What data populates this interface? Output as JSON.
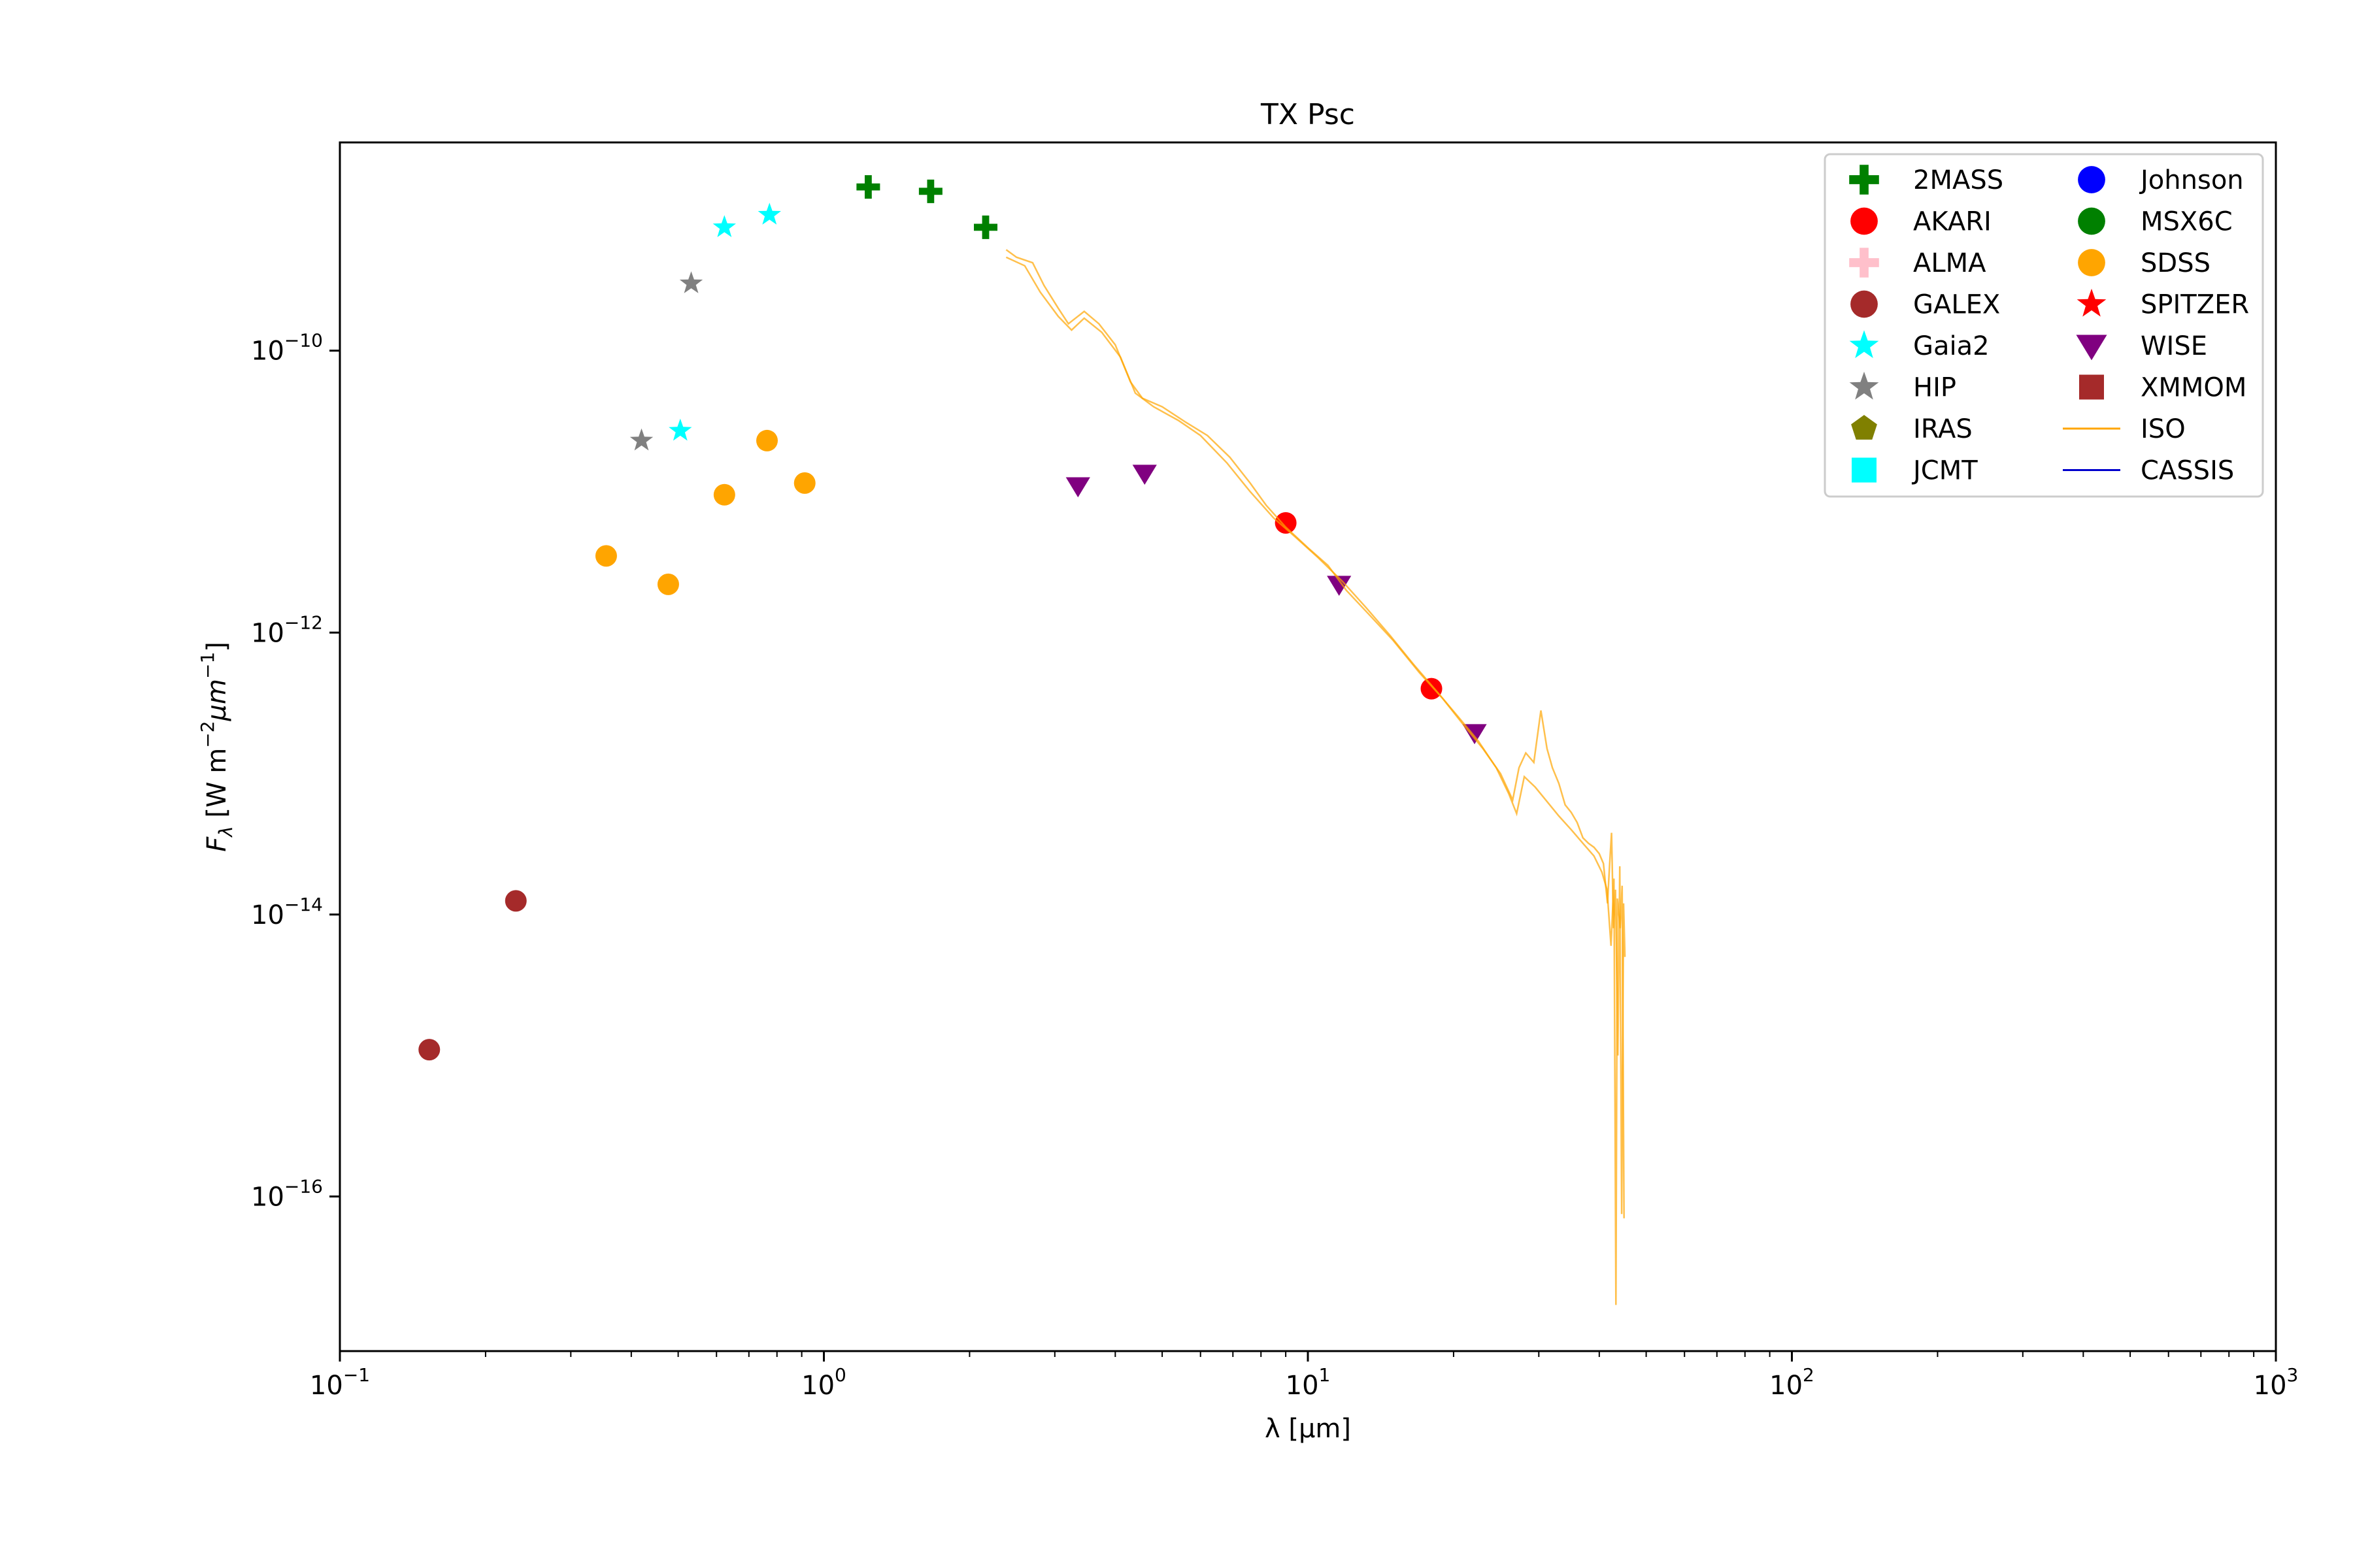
{
  "chart_data": {
    "type": "scatter",
    "title": "TX Psc",
    "xlabel": "λ [μm]",
    "ylabel": "F_λ [W m^-2 μm^-1]",
    "x_scale": "log",
    "y_scale": "log",
    "xlim": [
      0.1,
      1000
    ],
    "ylim": [
      8e-18,
      3e-09
    ],
    "grid": false,
    "legend_placement": "top-right",
    "x_ticks": [
      {
        "base": "10",
        "exp": "−1",
        "value": 0.1
      },
      {
        "base": "10",
        "exp": "0",
        "value": 1
      },
      {
        "base": "10",
        "exp": "1",
        "value": 10
      },
      {
        "base": "10",
        "exp": "2",
        "value": 100
      },
      {
        "base": "10",
        "exp": "3",
        "value": 1000
      }
    ],
    "y_ticks": [
      {
        "base": "10",
        "exp": "−10",
        "value": 1e-10
      },
      {
        "base": "10",
        "exp": "−12",
        "value": 1e-12
      },
      {
        "base": "10",
        "exp": "−14",
        "value": 1e-14
      },
      {
        "base": "10",
        "exp": "−16",
        "value": 1e-16
      }
    ],
    "series": [
      {
        "name": "2MASS",
        "marker": "plus",
        "color": "#008000",
        "points": [
          [
            1.235,
            1.45e-09
          ],
          [
            1.662,
            1.35e-09
          ],
          [
            2.159,
            7.5e-10
          ]
        ]
      },
      {
        "name": "AKARI",
        "marker": "circle",
        "color": "#ff0000",
        "points": [
          [
            9.0,
            6e-12
          ],
          [
            18.0,
            4e-13
          ]
        ]
      },
      {
        "name": "ALMA",
        "marker": "plus",
        "color": "#ffc0cb",
        "points": []
      },
      {
        "name": "GALEX",
        "marker": "circle",
        "color": "#a52a2a",
        "points": [
          [
            0.153,
            1.1e-15
          ],
          [
            0.231,
            1.25e-14
          ]
        ]
      },
      {
        "name": "Gaia2",
        "marker": "star",
        "color": "#00ffff",
        "points": [
          [
            0.505,
            2.7e-11
          ],
          [
            0.623,
            7.5e-10
          ],
          [
            0.772,
            9.2e-10
          ]
        ]
      },
      {
        "name": "HIP",
        "marker": "star",
        "color": "#808080",
        "points": [
          [
            0.42,
            2.3e-11
          ],
          [
            0.532,
            3e-10
          ]
        ]
      },
      {
        "name": "IRAS",
        "marker": "pentagon",
        "color": "#808000",
        "points": []
      },
      {
        "name": "JCMT",
        "marker": "square",
        "color": "#00ffff",
        "points": []
      },
      {
        "name": "Johnson",
        "marker": "circle",
        "color": "#0000ff",
        "points": []
      },
      {
        "name": "MSX6C",
        "marker": "circle",
        "color": "#008000",
        "points": []
      },
      {
        "name": "SDSS",
        "marker": "circle",
        "color": "#ffa500",
        "points": [
          [
            0.355,
            3.5e-12
          ],
          [
            0.477,
            2.2e-12
          ],
          [
            0.623,
            9.5e-12
          ],
          [
            0.763,
            2.3e-11
          ],
          [
            0.913,
            1.15e-11
          ]
        ]
      },
      {
        "name": "SPITZER",
        "marker": "star",
        "color": "#ff0000",
        "points": []
      },
      {
        "name": "WISE",
        "marker": "triangle-down",
        "color": "#800080",
        "points": [
          [
            3.35,
            1.1e-11
          ],
          [
            4.6,
            1.35e-11
          ],
          [
            11.6,
            2.2e-12
          ],
          [
            22.1,
            1.95e-13
          ]
        ]
      },
      {
        "name": "XMMOM",
        "marker": "square",
        "color": "#a52a2a",
        "points": []
      },
      {
        "name": "ISO",
        "marker": "line",
        "color": "#ffa500",
        "points": [
          [
            2.38,
            5.2e-10
          ],
          [
            2.5,
            4.6e-10
          ],
          [
            2.7,
            4.2e-10
          ],
          [
            2.85,
            2.9e-10
          ],
          [
            3.05,
            2e-10
          ],
          [
            3.2,
            1.55e-10
          ],
          [
            3.45,
            1.9e-10
          ],
          [
            3.7,
            1.55e-10
          ],
          [
            4.0,
            1.1e-10
          ],
          [
            4.3,
            6e-11
          ],
          [
            4.55,
            4.6e-11
          ],
          [
            5.0,
            4e-11
          ],
          [
            5.6,
            3.1e-11
          ],
          [
            6.2,
            2.5e-11
          ],
          [
            6.9,
            1.75e-11
          ],
          [
            7.6,
            1.15e-11
          ],
          [
            8.2,
            8e-12
          ],
          [
            9.0,
            5.6e-12
          ],
          [
            10.0,
            4e-12
          ],
          [
            11.0,
            3e-12
          ],
          [
            12.0,
            2e-12
          ],
          [
            13.5,
            1.3e-12
          ],
          [
            15.0,
            8.8e-13
          ],
          [
            17.0,
            5.2e-13
          ],
          [
            19.0,
            3.4e-13
          ],
          [
            21.0,
            2.2e-13
          ],
          [
            23.0,
            1.5e-13
          ],
          [
            25.0,
            1e-13
          ],
          [
            26.5,
            6.5e-14
          ],
          [
            27.3,
            1.1e-13
          ],
          [
            28.2,
            1.4e-13
          ],
          [
            29.3,
            1.2e-13
          ],
          [
            30.3,
            2.8e-13
          ],
          [
            31.2,
            1.5e-13
          ],
          [
            32.0,
            1.1e-13
          ],
          [
            33.0,
            8.5e-14
          ],
          [
            34.0,
            6e-14
          ],
          [
            35.0,
            5.3e-14
          ],
          [
            36.0,
            4.5e-14
          ],
          [
            37.0,
            3.5e-14
          ],
          [
            38.0,
            3.2e-14
          ],
          [
            39.0,
            3e-14
          ],
          [
            40.0,
            2.7e-14
          ],
          [
            40.8,
            2.3e-14
          ],
          [
            41.6,
            1.2e-14
          ],
          [
            42.0,
            2.2e-14
          ],
          [
            42.4,
            3.8e-14
          ],
          [
            42.8,
            8e-15
          ],
          [
            43.2,
            1.5e-14
          ],
          [
            43.7,
            1e-15
          ],
          [
            44.1,
            2.2e-14
          ],
          [
            44.5,
            7.5e-17
          ],
          [
            44.9,
            1.2e-14
          ],
          [
            45.2,
            5e-15
          ]
        ]
      },
      {
        "name": "ISO",
        "marker": "line",
        "color": "#ffa500",
        "points": [
          [
            2.38,
            4.6e-10
          ],
          [
            2.6,
            4e-10
          ],
          [
            2.8,
            2.6e-10
          ],
          [
            3.05,
            1.75e-10
          ],
          [
            3.25,
            1.4e-10
          ],
          [
            3.45,
            1.7e-10
          ],
          [
            3.75,
            1.35e-10
          ],
          [
            4.1,
            9e-11
          ],
          [
            4.4,
            5e-11
          ],
          [
            4.8,
            4e-11
          ],
          [
            5.4,
            3.2e-11
          ],
          [
            6.0,
            2.5e-11
          ],
          [
            6.8,
            1.6e-11
          ],
          [
            7.6,
            1e-11
          ],
          [
            8.5,
            6.5e-12
          ],
          [
            9.4,
            4.8e-12
          ],
          [
            10.5,
            3.4e-12
          ],
          [
            11.8,
            2.3e-12
          ],
          [
            13.2,
            1.5e-12
          ],
          [
            14.8,
            9.5e-13
          ],
          [
            16.5,
            6e-13
          ],
          [
            18.5,
            3.8e-13
          ],
          [
            20.5,
            2.5e-13
          ],
          [
            22.5,
            1.7e-13
          ],
          [
            24.5,
            1.1e-13
          ],
          [
            26.0,
            7.2e-14
          ],
          [
            27.0,
            5.2e-14
          ],
          [
            28.0,
            9.5e-14
          ],
          [
            29.5,
            8e-14
          ],
          [
            31.0,
            6.5e-14
          ],
          [
            33.0,
            5e-14
          ],
          [
            35.0,
            4e-14
          ],
          [
            37.0,
            3.2e-14
          ],
          [
            39.0,
            2.6e-14
          ],
          [
            40.5,
            2e-14
          ],
          [
            41.5,
            1.5e-14
          ],
          [
            42.3,
            6e-15
          ],
          [
            42.9,
            1.8e-14
          ],
          [
            43.3,
            1.7e-17
          ],
          [
            43.6,
            1.3e-14
          ],
          [
            44.2,
            8e-15
          ],
          [
            44.6,
            1.6e-14
          ],
          [
            45.0,
            7e-17
          ]
        ]
      },
      {
        "name": "CASSIS",
        "marker": "line",
        "color": "#0000cd",
        "points": []
      }
    ],
    "legend": [
      {
        "label": "2MASS",
        "marker": "plus",
        "color": "#008000"
      },
      {
        "label": "AKARI",
        "marker": "circle",
        "color": "#ff0000"
      },
      {
        "label": "ALMA",
        "marker": "plus",
        "color": "#ffc0cb"
      },
      {
        "label": "GALEX",
        "marker": "circle",
        "color": "#a52a2a"
      },
      {
        "label": "Gaia2",
        "marker": "star",
        "color": "#00ffff"
      },
      {
        "label": "HIP",
        "marker": "star",
        "color": "#808080"
      },
      {
        "label": "IRAS",
        "marker": "pentagon",
        "color": "#808000"
      },
      {
        "label": "JCMT",
        "marker": "square",
        "color": "#00ffff"
      },
      {
        "label": "Johnson",
        "marker": "circle",
        "color": "#0000ff"
      },
      {
        "label": "MSX6C",
        "marker": "circle",
        "color": "#008000"
      },
      {
        "label": "SDSS",
        "marker": "circle",
        "color": "#ffa500"
      },
      {
        "label": "SPITZER",
        "marker": "star",
        "color": "#ff0000"
      },
      {
        "label": "WISE",
        "marker": "triangle-down",
        "color": "#800080"
      },
      {
        "label": "XMMOM",
        "marker": "square",
        "color": "#a52a2a"
      },
      {
        "label": "ISO",
        "marker": "line",
        "color": "#ffa500"
      },
      {
        "label": "CASSIS",
        "marker": "line",
        "color": "#0000cd"
      }
    ]
  }
}
